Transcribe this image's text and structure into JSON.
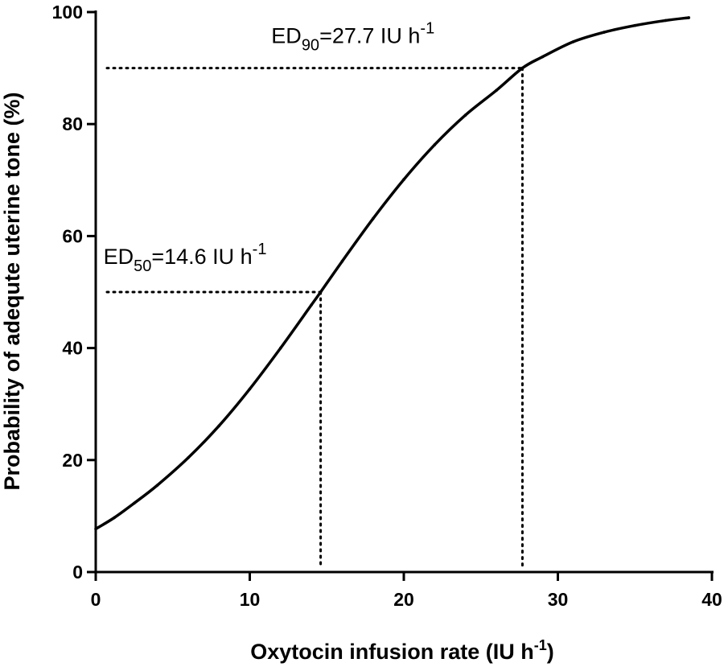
{
  "chart_data": {
    "type": "line",
    "title": "",
    "xlabel": {
      "main": "Oxytocin infusion rate (IU h",
      "sup": "-1",
      "close": ")"
    },
    "ylabel": "Probability of adequte uterine tone (%)",
    "xlim": [
      0,
      40
    ],
    "ylim": [
      0,
      100
    ],
    "xticks": [
      0,
      10,
      20,
      30,
      40
    ],
    "yticks": [
      0,
      20,
      40,
      60,
      80,
      100
    ],
    "grid": false,
    "legend": "none",
    "series": [
      {
        "x": [
          0,
          1.2,
          2.5,
          4,
          6,
          8,
          10,
          12,
          14,
          14.6,
          16,
          18,
          20,
          22,
          24,
          26,
          27.7,
          29,
          31,
          33,
          35,
          37,
          38.5
        ],
        "y": [
          7.7,
          9.7,
          12.3,
          15.5,
          20.4,
          26.1,
          32.7,
          40.0,
          47.7,
          50.0,
          55.5,
          63.1,
          70.1,
          76.3,
          81.6,
          86.0,
          90.0,
          92.0,
          94.7,
          96.4,
          97.6,
          98.5,
          99.0
        ]
      }
    ],
    "reference_lines": [
      {
        "x": 14.6,
        "y": 50
      },
      {
        "x": 27.7,
        "y": 90
      }
    ],
    "annotations": [
      {
        "base": "ED",
        "sub": "50",
        "text": "=14.6 IU h",
        "sup": "-1",
        "x": 0.5,
        "y": 55
      },
      {
        "base": "ED",
        "sub": "90",
        "text": "=27.7 IU h",
        "sup": "-1",
        "x": 11.4,
        "y": 94.5
      }
    ]
  }
}
